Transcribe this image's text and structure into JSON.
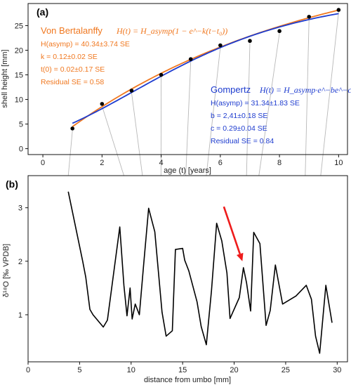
{
  "chart_data": [
    {
      "panel_label": "(a)",
      "type": "scatter",
      "xlabel": "age (t) [years]",
      "ylabel": "shell height [mm]",
      "xlim": [
        -0.5,
        10.3
      ],
      "ylim": [
        -1.2,
        29.5
      ],
      "xticks": [
        0,
        2,
        4,
        6,
        8,
        10
      ],
      "yticks": [
        0,
        5,
        10,
        15,
        20,
        25
      ],
      "points": [
        {
          "x": 1,
          "y": 4.1
        },
        {
          "x": 2,
          "y": 9.1
        },
        {
          "x": 3,
          "y": 11.8
        },
        {
          "x": 4,
          "y": 15.0
        },
        {
          "x": 5,
          "y": 18.2
        },
        {
          "x": 6,
          "y": 21.0
        },
        {
          "x": 7,
          "y": 21.9
        },
        {
          "x": 8,
          "y": 23.9
        },
        {
          "x": 9,
          "y": 26.8
        },
        {
          "x": 10,
          "y": 28.2
        }
      ],
      "fits": [
        {
          "name": "Von Bertalanffy",
          "color": "#f07820",
          "model": "vb",
          "params": {
            "Hasym": 40.34,
            "k": 0.12,
            "t0": 0.02
          },
          "formula": "H(t) = H_asymp(1 − e^−k(t−t₀))",
          "lines": [
            "H(asymp) = 40.34±3.74 SE",
            "k = 0.12±0.02 SE",
            "t(0) = 0.02±0.17 SE",
            "Residual SE = 0.58"
          ]
        },
        {
          "name": "Gompertz",
          "color": "#1e3ccf",
          "model": "gompertz",
          "params": {
            "Hasym": 31.34,
            "b": 2.41,
            "c": 0.29
          },
          "formula": "H(t) = H_asymp·e^−be^−ct",
          "lines": [
            "H(asymp) = 31.34±1.83 SE",
            "b = 2,41±0.18 SE",
            "c = 0.29±0.04 SE",
            "Residual SE = 0.84"
          ]
        }
      ]
    },
    {
      "panel_label": "(b)",
      "type": "line",
      "xlabel": "distance from umbo [mm]",
      "ylabel": "δ¹⁸O [‰ VPDB]",
      "xlim": [
        0,
        31
      ],
      "ylim": [
        0.12,
        3.6
      ],
      "xticks": [
        0,
        5,
        10,
        15,
        20,
        25,
        30
      ],
      "yticks": [
        1,
        2,
        3
      ],
      "series": [
        {
          "color": "#000000",
          "x": [
            3.9,
            5.3,
            5.6,
            6.0,
            6.3,
            7.3,
            7.7,
            8.9,
            9.3,
            9.6,
            9.9,
            10.1,
            10.4,
            10.8,
            11.2,
            11.7,
            12.3,
            13.0,
            13.4,
            14.0,
            14.3,
            15.0,
            15.2,
            15.6,
            16.4,
            16.8,
            17.3,
            17.8,
            18.3,
            18.8,
            19.3,
            19.6,
            20.5,
            20.9,
            21.2,
            21.6,
            21.9,
            22.5,
            23.1,
            23.5,
            24.0,
            24.7,
            26.0,
            27.0,
            27.5,
            27.9,
            28.3,
            28.9,
            29.5
          ],
          "y": [
            3.3,
            2.0,
            1.7,
            1.1,
            1.0,
            0.77,
            0.9,
            2.64,
            1.55,
            0.98,
            1.5,
            0.92,
            1.2,
            1.0,
            1.9,
            2.99,
            2.55,
            1.05,
            0.6,
            0.7,
            2.22,
            2.24,
            2.02,
            1.82,
            1.24,
            0.78,
            0.44,
            1.45,
            2.71,
            2.38,
            1.78,
            0.93,
            1.32,
            1.88,
            1.6,
            1.07,
            2.54,
            2.33,
            0.8,
            1.08,
            1.93,
            1.2,
            1.35,
            1.55,
            1.29,
            0.6,
            0.28,
            1.55,
            0.85
          ]
        }
      ],
      "annotation": {
        "type": "arrow",
        "color": "#ee1c1c",
        "from": [
          19.0,
          3.02
        ],
        "to": [
          20.8,
          2.0
        ]
      }
    }
  ],
  "connectors": {
    "color": "#b8b8b8",
    "pairs": [
      [
        1,
        3.9
      ],
      [
        2,
        9.3
      ],
      [
        3,
        11.1
      ],
      [
        4,
        12.9
      ],
      [
        5,
        15.3
      ],
      [
        6,
        17.3
      ],
      [
        7,
        21.2
      ],
      [
        8,
        22.4
      ],
      [
        9,
        26.9
      ],
      [
        10,
        28.4
      ]
    ]
  }
}
